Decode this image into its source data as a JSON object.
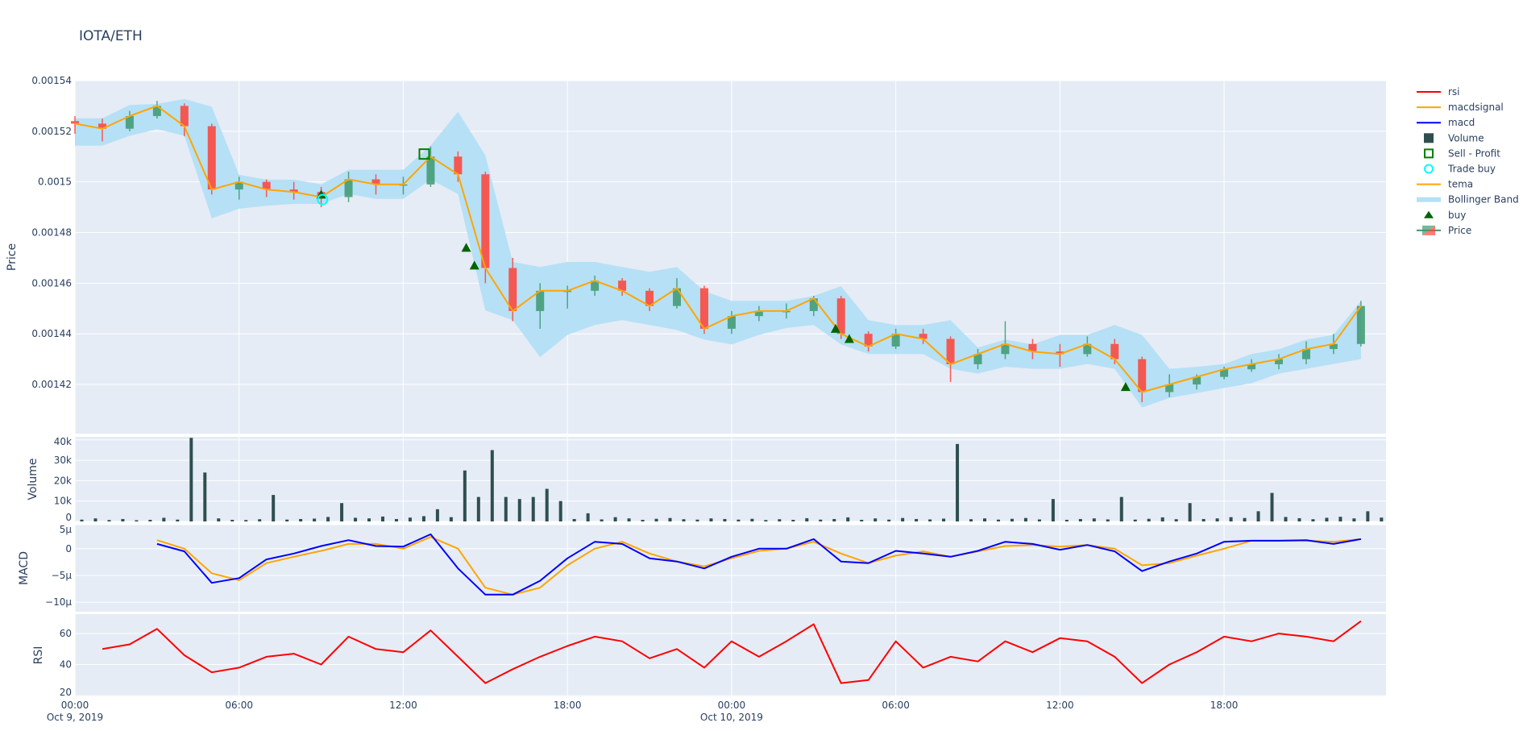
{
  "chart_data": {
    "title": "IOTA/ETH",
    "type": "candlestick",
    "x": [
      "2019-10-09 00:00",
      "2019-10-09 01:00",
      "2019-10-09 02:00",
      "2019-10-09 03:00",
      "2019-10-09 04:00",
      "2019-10-09 05:00",
      "2019-10-09 06:00",
      "2019-10-09 07:00",
      "2019-10-09 08:00",
      "2019-10-09 09:00",
      "2019-10-09 10:00",
      "2019-10-09 11:00",
      "2019-10-09 12:00",
      "2019-10-09 13:00",
      "2019-10-09 14:00",
      "2019-10-09 15:00",
      "2019-10-09 16:00",
      "2019-10-09 17:00",
      "2019-10-09 18:00",
      "2019-10-09 19:00",
      "2019-10-09 20:00",
      "2019-10-09 21:00",
      "2019-10-09 22:00",
      "2019-10-09 23:00",
      "2019-10-10 00:00",
      "2019-10-10 01:00",
      "2019-10-10 02:00",
      "2019-10-10 03:00",
      "2019-10-10 04:00",
      "2019-10-10 05:00",
      "2019-10-10 06:00",
      "2019-10-10 07:00",
      "2019-10-10 08:00",
      "2019-10-10 09:00",
      "2019-10-10 10:00",
      "2019-10-10 11:00",
      "2019-10-10 12:00",
      "2019-10-10 13:00",
      "2019-10-10 14:00",
      "2019-10-10 15:00",
      "2019-10-10 16:00",
      "2019-10-10 17:00",
      "2019-10-10 18:00",
      "2019-10-10 19:00",
      "2019-10-10 20:00",
      "2019-10-10 21:00",
      "2019-10-10 22:00",
      "2019-10-10 23:00"
    ],
    "x_range": [
      "2019-10-09 00:00",
      "2019-10-10 23:55"
    ],
    "x_ticks": [
      {
        "t": "2019-10-09 00:00",
        "l1": "00:00",
        "l2": "Oct 9, 2019"
      },
      {
        "t": "2019-10-09 06:00",
        "l1": "06:00",
        "l2": ""
      },
      {
        "t": "2019-10-09 12:00",
        "l1": "12:00",
        "l2": ""
      },
      {
        "t": "2019-10-09 18:00",
        "l1": "18:00",
        "l2": ""
      },
      {
        "t": "2019-10-10 00:00",
        "l1": "00:00",
        "l2": "Oct 10, 2019"
      },
      {
        "t": "2019-10-10 06:00",
        "l1": "06:00",
        "l2": ""
      },
      {
        "t": "2019-10-10 12:00",
        "l1": "12:00",
        "l2": ""
      },
      {
        "t": "2019-10-10 18:00",
        "l1": "18:00",
        "l2": ""
      }
    ],
    "grid": true,
    "legend_position": "right",
    "panels": {
      "price": {
        "ylabel": "Price",
        "ylim": [
          0.0014006,
          0.00154
        ],
        "ticks": [
          {
            "v": 0.00142,
            "l": "0.00142"
          },
          {
            "v": 0.00144,
            "l": "0.00144"
          },
          {
            "v": 0.00146,
            "l": "0.00146"
          },
          {
            "v": 0.00148,
            "l": "0.00148"
          },
          {
            "v": 0.0015,
            "l": "0.0015"
          },
          {
            "v": 0.00152,
            "l": "0.00152"
          },
          {
            "v": 0.00154,
            "l": "0.00154"
          }
        ],
        "ohlc": [
          [
            0.001524,
            0.001526,
            0.001519,
            0.001523
          ],
          [
            0.001523,
            0.001525,
            0.001516,
            0.001521
          ],
          [
            0.001521,
            0.001528,
            0.00152,
            0.001526
          ],
          [
            0.001526,
            0.001532,
            0.001525,
            0.00153
          ],
          [
            0.00153,
            0.001531,
            0.001518,
            0.001522
          ],
          [
            0.001522,
            0.001523,
            0.001495,
            0.001497
          ],
          [
            0.001497,
            0.001502,
            0.001493,
            0.0015
          ],
          [
            0.0015,
            0.001501,
            0.001494,
            0.001497
          ],
          [
            0.001497,
            0.0015,
            0.001493,
            0.001496
          ],
          [
            0.001496,
            0.001498,
            0.00149,
            0.001494
          ],
          [
            0.001494,
            0.001504,
            0.001492,
            0.001501
          ],
          [
            0.001501,
            0.001503,
            0.001495,
            0.001499
          ],
          [
            0.001499,
            0.001502,
            0.001495,
            0.001499
          ],
          [
            0.001499,
            0.001514,
            0.001498,
            0.00151
          ],
          [
            0.00151,
            0.001512,
            0.0015,
            0.001503
          ],
          [
            0.001503,
            0.001504,
            0.00146,
            0.001466
          ],
          [
            0.001466,
            0.00147,
            0.001445,
            0.001449
          ],
          [
            0.001449,
            0.00146,
            0.001442,
            0.001457
          ],
          [
            0.001457,
            0.001459,
            0.00145,
            0.001457
          ],
          [
            0.001457,
            0.001463,
            0.001455,
            0.001461
          ],
          [
            0.001461,
            0.001462,
            0.001455,
            0.001457
          ],
          [
            0.001457,
            0.001458,
            0.001449,
            0.001451
          ],
          [
            0.001451,
            0.001462,
            0.00145,
            0.001458
          ],
          [
            0.001458,
            0.001459,
            0.00144,
            0.001442
          ],
          [
            0.001442,
            0.001449,
            0.00144,
            0.001447
          ],
          [
            0.001447,
            0.001451,
            0.001445,
            0.001449
          ],
          [
            0.001449,
            0.001452,
            0.001446,
            0.001449
          ],
          [
            0.001449,
            0.001455,
            0.001447,
            0.001454
          ],
          [
            0.001454,
            0.001455,
            0.001438,
            0.00144
          ],
          [
            0.00144,
            0.001441,
            0.001433,
            0.001435
          ],
          [
            0.001435,
            0.001442,
            0.001434,
            0.00144
          ],
          [
            0.00144,
            0.001442,
            0.001436,
            0.001438
          ],
          [
            0.001438,
            0.001439,
            0.001421,
            0.001428
          ],
          [
            0.001428,
            0.001434,
            0.001426,
            0.001432
          ],
          [
            0.001432,
            0.001445,
            0.00143,
            0.001436
          ],
          [
            0.001436,
            0.001438,
            0.00143,
            0.001433
          ],
          [
            0.001433,
            0.001436,
            0.001427,
            0.001432
          ],
          [
            0.001432,
            0.001439,
            0.001431,
            0.001436
          ],
          [
            0.001436,
            0.001438,
            0.001428,
            0.00143
          ],
          [
            0.00143,
            0.001431,
            0.001413,
            0.001417
          ],
          [
            0.001417,
            0.001424,
            0.001415,
            0.00142
          ],
          [
            0.00142,
            0.001424,
            0.001418,
            0.001423
          ],
          [
            0.001423,
            0.001427,
            0.001422,
            0.001426
          ],
          [
            0.001426,
            0.00143,
            0.001425,
            0.001428
          ],
          [
            0.001428,
            0.001432,
            0.001426,
            0.00143
          ],
          [
            0.00143,
            0.001437,
            0.001428,
            0.001434
          ],
          [
            0.001434,
            0.00144,
            0.001432,
            0.001436
          ],
          [
            0.001436,
            0.001453,
            0.001435,
            0.001451
          ]
        ],
        "tema": [
          0.001523,
          0.001521,
          0.001526,
          0.00153,
          0.001522,
          0.001497,
          0.0015,
          0.001497,
          0.001496,
          0.001494,
          0.001501,
          0.001499,
          0.001499,
          0.00151,
          0.001503,
          0.001466,
          0.001449,
          0.001457,
          0.001457,
          0.001461,
          0.001457,
          0.001451,
          0.001458,
          0.001442,
          0.001447,
          0.001449,
          0.001449,
          0.001454,
          0.00144,
          0.001435,
          0.00144,
          0.001438,
          0.001428,
          0.001432,
          0.001436,
          0.001433,
          0.001432,
          0.001436,
          0.00143,
          0.001417,
          0.00142,
          0.001423,
          0.001426,
          0.001428,
          0.00143,
          0.001434,
          0.001436,
          0.001451
        ],
        "bb_upper": [
          0.0015251,
          0.0015251,
          0.0015304,
          0.0015308,
          0.0015327,
          0.0015297,
          0.0015028,
          0.0015009,
          0.0015009,
          0.001499,
          0.0015048,
          0.0015048,
          0.0015048,
          0.0015143,
          0.0015277,
          0.0015105,
          0.0014684,
          0.0014664,
          0.0014684,
          0.0014684,
          0.0014664,
          0.0014645,
          0.0014664,
          0.0014569,
          0.001453,
          0.001453,
          0.001453,
          0.001455,
          0.0014588,
          0.0014454,
          0.0014435,
          0.0014435,
          0.0014454,
          0.0014346,
          0.0014377,
          0.0014358,
          0.0014396,
          0.0014396,
          0.0014435,
          0.0014396,
          0.0014262,
          0.001427,
          0.0014281,
          0.001432,
          0.0014339,
          0.0014377,
          0.0014396,
          0.001453
        ],
        "bb_lower": [
          0.0015143,
          0.0015143,
          0.0015182,
          0.0015208,
          0.0015182,
          0.0014856,
          0.0014894,
          0.0014906,
          0.0014913,
          0.0014913,
          0.0014952,
          0.0014933,
          0.0014933,
          0.0015009,
          0.0014952,
          0.0014492,
          0.0014454,
          0.0014308,
          0.0014396,
          0.0014435,
          0.0014454,
          0.0014435,
          0.0014415,
          0.0014377,
          0.0014358,
          0.0014396,
          0.0014423,
          0.0014435,
          0.0014358,
          0.001432,
          0.001432,
          0.001432,
          0.0014262,
          0.0014243,
          0.001427,
          0.0014262,
          0.0014262,
          0.0014281,
          0.0014262,
          0.0014109,
          0.0014147,
          0.0014166,
          0.0014186,
          0.0014205,
          0.0014243,
          0.0014262,
          0.0014281,
          0.00143
        ],
        "buy": [
          {
            "t": "2019-10-09 09:00",
            "v": 0.001495
          },
          {
            "t": "2019-10-09 14:18",
            "v": 0.001474
          },
          {
            "t": "2019-10-09 14:36",
            "v": 0.001467
          },
          {
            "t": "2019-10-10 03:48",
            "v": 0.001442
          },
          {
            "t": "2019-10-10 04:18",
            "v": 0.001438
          },
          {
            "t": "2019-10-10 14:24",
            "v": 0.001419
          }
        ],
        "trade_buy": [
          {
            "t": "2019-10-09 09:03",
            "v": 0.001493
          }
        ],
        "sell_profit": [
          {
            "t": "2019-10-09 12:46",
            "v": 0.001511
          }
        ]
      },
      "volume": {
        "ylabel": "Volume",
        "ylim": [
          0,
          41500
        ],
        "ticks": [
          {
            "v": 0,
            "l": "0"
          },
          {
            "v": 10000,
            "l": "10k"
          },
          {
            "v": 20000,
            "l": "20k"
          },
          {
            "v": 30000,
            "l": "30k"
          },
          {
            "v": 40000,
            "l": "40k"
          }
        ],
        "x_step_minutes": 30,
        "values": [
          900,
          1500,
          700,
          1200,
          600,
          800,
          1800,
          900,
          41000,
          24000,
          1500,
          800,
          700,
          1100,
          13000,
          900,
          1200,
          1400,
          2200,
          9000,
          1800,
          1500,
          2400,
          1200,
          1900,
          2600,
          6000,
          2100,
          25000,
          12000,
          35000,
          12000,
          11000,
          12000,
          16000,
          10000,
          1200,
          4000,
          1000,
          2100,
          1500,
          800,
          1300,
          1700,
          1100,
          900,
          1500,
          1200,
          900,
          1300,
          700,
          1100,
          800,
          1600,
          900,
          1200,
          2000,
          800,
          1500,
          900,
          1700,
          1200,
          1000,
          1400,
          38000,
          1100,
          1500,
          900,
          1300,
          1700,
          1000,
          11000,
          800,
          1200,
          1500,
          1000,
          12000,
          900,
          1300,
          2000,
          1100,
          9000,
          1200,
          1500,
          2100,
          1700,
          5000,
          14000,
          2200,
          1600,
          1100,
          1800,
          2300,
          1500,
          5000,
          1900
        ]
      },
      "macd": {
        "ylabel": "MACD",
        "ylim": [
          -11.8,
          4.5
        ],
        "unit": "µ",
        "ticks": [
          {
            "v": 5,
            "l": "5µ"
          },
          {
            "v": 0,
            "l": "0"
          },
          {
            "v": -5,
            "l": "−5µ"
          },
          {
            "v": -10,
            "l": "−10µ"
          }
        ],
        "macd": [
          null,
          null,
          null,
          0.9,
          -0.5,
          -6.4,
          -5.5,
          -2.0,
          -0.9,
          0.5,
          1.6,
          0.5,
          0.4,
          2.7,
          -3.7,
          -8.6,
          -8.6,
          -6.0,
          -1.8,
          1.3,
          0.9,
          -1.8,
          -2.4,
          -3.7,
          -1.5,
          0,
          0,
          1.8,
          -2.4,
          -2.7,
          -0.4,
          -0.9,
          -1.5,
          -0.4,
          1.3,
          0.9,
          -0.2,
          0.7,
          -0.5,
          -4.2,
          -2.4,
          -0.9,
          1.3,
          1.5,
          1.5,
          1.6,
          0.9,
          1.8
        ],
        "macdsignal": [
          null,
          null,
          null,
          1.6,
          0,
          -4.6,
          -5.9,
          -2.7,
          -1.5,
          -0.4,
          0.9,
          0.9,
          0,
          2.2,
          0,
          -7.3,
          -8.6,
          -7.3,
          -3.1,
          0,
          1.3,
          -0.9,
          -2.4,
          -3.3,
          -1.8,
          -0.4,
          0,
          1.3,
          -0.9,
          -2.7,
          -1.3,
          -0.5,
          -1.5,
          -0.5,
          0.5,
          0.7,
          0.4,
          0.7,
          0,
          -3.1,
          -2.7,
          -1.3,
          0,
          1.5,
          1.5,
          1.5,
          1.3,
          1.8
        ]
      },
      "rsi": {
        "ylabel": "RSI",
        "ylim": [
          19.5,
          72.5
        ],
        "ticks": [
          {
            "v": 20,
            "l": "20"
          },
          {
            "v": 40,
            "l": "40"
          },
          {
            "v": 60,
            "l": "60"
          }
        ],
        "values": [
          null,
          50,
          53,
          63,
          46,
          35,
          38,
          45,
          47,
          40,
          58,
          50,
          48,
          62,
          45,
          28,
          37,
          45,
          52,
          58,
          55,
          44,
          50,
          38,
          55,
          45,
          55,
          66,
          28,
          30,
          55,
          38,
          45,
          42,
          55,
          48,
          57,
          55,
          45,
          28,
          40,
          48,
          58,
          55,
          60,
          58,
          55,
          68
        ]
      }
    },
    "legend": [
      {
        "name": "rsi",
        "kind": "line",
        "color": "#ff0000"
      },
      {
        "name": "macdsignal",
        "kind": "line",
        "color": "#ffa500"
      },
      {
        "name": "macd",
        "kind": "line",
        "color": "#0000ff"
      },
      {
        "name": "Volume",
        "kind": "square",
        "color": "#2f4f4f"
      },
      {
        "name": "Sell - Profit",
        "kind": "open-square",
        "color": "#008000"
      },
      {
        "name": "Trade buy",
        "kind": "open-circle",
        "color": "#00ffff"
      },
      {
        "name": "tema",
        "kind": "line",
        "color": "#ffa500"
      },
      {
        "name": "Bollinger Band",
        "kind": "band",
        "color": "#b6e0f5"
      },
      {
        "name": "buy",
        "kind": "triangle",
        "color": "#006400"
      },
      {
        "name": "Price",
        "kind": "candle",
        "color": "#3d9970"
      }
    ],
    "colors": {
      "increasing": "#3d9970",
      "decreasing": "#ff4136",
      "plot_bg": "#e5ecf6",
      "grid": "#ffffff"
    }
  }
}
